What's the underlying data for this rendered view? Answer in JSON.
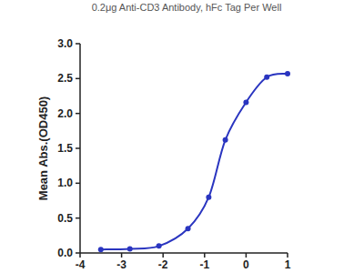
{
  "chart_data": {
    "type": "line",
    "title": "0.2μg Anti-CD3 Antibody, hFc Tag Per Well",
    "y_label": "Mean Abs.(OD450)",
    "x": [
      -3.5,
      -2.8,
      -2.1,
      -1.4,
      -0.9,
      -0.5,
      0.0,
      0.5,
      1.0
    ],
    "series": [
      {
        "name": "OD450",
        "color": "#2a35c0",
        "marker": "circle",
        "values": [
          0.05,
          0.06,
          0.1,
          0.35,
          0.8,
          1.62,
          2.16,
          2.52,
          2.57
        ]
      }
    ],
    "xlim": [
      -4,
      1
    ],
    "xticks": [
      -4,
      -3,
      -2,
      -1,
      0,
      1
    ],
    "ylim": [
      0,
      3.0
    ],
    "yticks": [
      {
        "value": 0,
        "label": "0.0"
      },
      {
        "value": 0.5,
        "label": "0.5"
      },
      {
        "value": 1,
        "label": "1.0"
      },
      {
        "value": 1.5,
        "label": "1.5"
      },
      {
        "value": 2,
        "label": "2.0"
      },
      {
        "value": 2.5,
        "label": "2.5"
      },
      {
        "value": 3,
        "label": "3.0"
      }
    ],
    "grid": false
  }
}
